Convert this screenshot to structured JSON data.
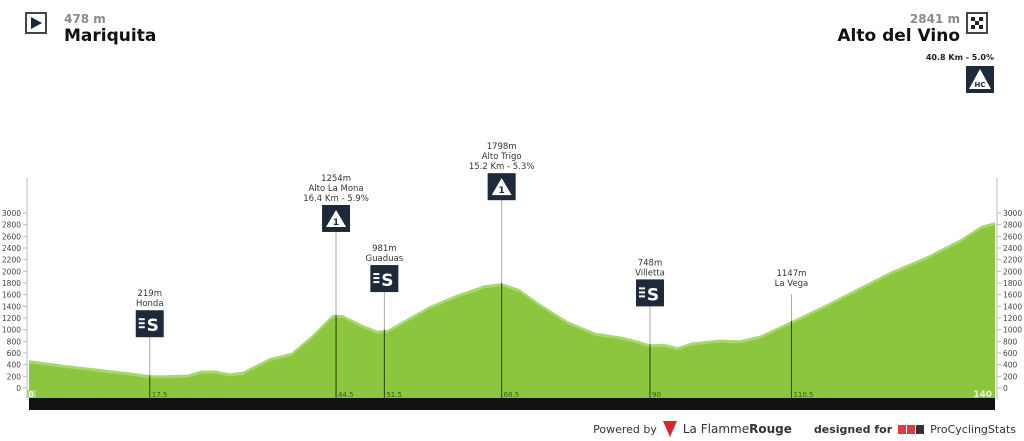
{
  "start": {
    "altitude": "478 m",
    "name": "Mariquita",
    "icon": "start-flag-icon"
  },
  "finish": {
    "altitude": "2841 m",
    "name": "Alto del Vino",
    "icon": "checkered-flag-icon",
    "climb": "40.8 Km - 5.0%",
    "category": "HC"
  },
  "footer": {
    "powered_by": "Powered by",
    "brand1": "La Flamme",
    "brand1_bold": "Rouge",
    "designed_for": "designed for",
    "brand2": "ProCyclingStats",
    "brand2_logo": "PCS"
  },
  "colors": {
    "profile": "#8cc63f",
    "profile_light": "#a6d96a",
    "axis_bar": "#111111",
    "marker_box": "#1e2a3a"
  },
  "chart_data": {
    "type": "area",
    "xlabel": "",
    "ylabel": "",
    "xlim": [
      0,
      140
    ],
    "ylim": [
      0,
      3000
    ],
    "yticks": [
      0,
      200,
      400,
      600,
      800,
      1000,
      1200,
      1400,
      1600,
      1800,
      2000,
      2200,
      2400,
      2600,
      2800,
      3000
    ],
    "x_start_label": "0",
    "x_end_label": "140",
    "profile": [
      [
        0,
        478
      ],
      [
        5,
        400
      ],
      [
        10,
        330
      ],
      [
        15,
        260
      ],
      [
        17.5,
        219
      ],
      [
        20,
        220
      ],
      [
        23,
        230
      ],
      [
        25,
        300
      ],
      [
        27,
        300
      ],
      [
        29,
        250
      ],
      [
        31,
        280
      ],
      [
        33,
        400
      ],
      [
        35,
        520
      ],
      [
        38,
        600
      ],
      [
        41,
        900
      ],
      [
        44,
        1254
      ],
      [
        45.5,
        1250
      ],
      [
        48,
        1100
      ],
      [
        50.5,
        981
      ],
      [
        52,
        1000
      ],
      [
        55,
        1200
      ],
      [
        58,
        1400
      ],
      [
        62,
        1600
      ],
      [
        66,
        1760
      ],
      [
        68.5,
        1798
      ],
      [
        71,
        1700
      ],
      [
        74,
        1450
      ],
      [
        78,
        1150
      ],
      [
        82,
        950
      ],
      [
        86,
        880
      ],
      [
        88,
        820
      ],
      [
        90,
        748
      ],
      [
        92,
        760
      ],
      [
        94,
        700
      ],
      [
        96,
        780
      ],
      [
        100,
        830
      ],
      [
        103,
        820
      ],
      [
        106,
        900
      ],
      [
        110.5,
        1147
      ],
      [
        115,
        1400
      ],
      [
        120,
        1700
      ],
      [
        125,
        2000
      ],
      [
        130,
        2250
      ],
      [
        135,
        2550
      ],
      [
        138,
        2780
      ],
      [
        140,
        2841
      ]
    ],
    "markers": [
      {
        "km": "17.5",
        "x": 17.5,
        "altitude": "219m",
        "name": "Honda",
        "detail": "",
        "type": "sprint"
      },
      {
        "km": "44.5",
        "x": 44.5,
        "altitude": "1254m",
        "name": "Alto La Mona",
        "detail": "16.4 Km - 5.9%",
        "type": "climb",
        "category": "1"
      },
      {
        "km": "51.5",
        "x": 51.5,
        "altitude": "981m",
        "name": "Guaduas",
        "detail": "",
        "type": "sprint"
      },
      {
        "km": "68.5",
        "x": 68.5,
        "altitude": "1798m",
        "name": "Alto Trigo",
        "detail": "15.2 Km - 5.3%",
        "type": "climb",
        "category": "1"
      },
      {
        "km": "90",
        "x": 90,
        "altitude": "748m",
        "name": "Villetta",
        "detail": "",
        "type": "sprint"
      },
      {
        "km": "110.5",
        "x": 110.5,
        "altitude": "1147m",
        "name": "La Vega",
        "detail": "",
        "type": "town"
      }
    ]
  }
}
